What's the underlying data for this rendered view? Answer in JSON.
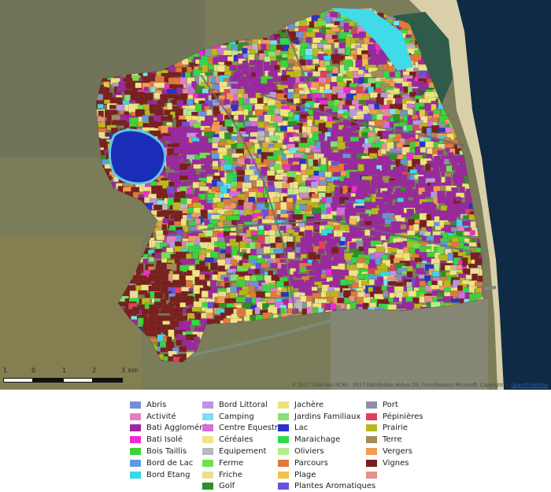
{
  "map": {
    "scale": {
      "labels": [
        "1",
        "0",
        "1",
        "2",
        "3",
        "km"
      ]
    },
    "attribution": {
      "text": "© 2017 CIGA Geo-SCN3 - 2017 Distribution Airbus DS, Contributeurs Microsoft, Copyright ©",
      "link": "OpenStreetMap"
    },
    "lake": {
      "color": "#1a2db8"
    },
    "sea": {
      "color": "#0e2a45"
    }
  },
  "legend": {
    "columns": [
      [
        {
          "label": "Abris",
          "color": "#6f8fdc"
        },
        {
          "label": "Activité",
          "color": "#e27fc6"
        },
        {
          "label": "Bati Aggloméré",
          "color": "#9c27a3"
        },
        {
          "label": "Bati Isolé",
          "color": "#f02bd4"
        },
        {
          "label": "Bois Taillis",
          "color": "#3fd23a"
        },
        {
          "label": "Bord de Lac",
          "color": "#5f9be0"
        },
        {
          "label": "Bord Etang",
          "color": "#38d7ea"
        }
      ],
      [
        {
          "label": "Bord Littoral",
          "color": "#b897e2"
        },
        {
          "label": "Camping",
          "color": "#7fdff0"
        },
        {
          "label": "Centre Equestre",
          "color": "#d36de0"
        },
        {
          "label": "Céréales",
          "color": "#f2e38a"
        },
        {
          "label": "Equipement",
          "color": "#b9b9b9"
        },
        {
          "label": "Ferme",
          "color": "#6fe24a"
        },
        {
          "label": "Friche",
          "color": "#e9dd97"
        },
        {
          "label": "Golf",
          "color": "#2f8f2a"
        }
      ],
      [
        {
          "label": "Jachère",
          "color": "#ece37a"
        },
        {
          "label": "Jardins Familiaux",
          "color": "#86e07a"
        },
        {
          "label": "Lac",
          "color": "#2a33c9"
        },
        {
          "label": "Maraichage",
          "color": "#33d84a"
        },
        {
          "label": "Oliviers",
          "color": "#b6ec8f"
        },
        {
          "label": "Parcours",
          "color": "#e0793a"
        },
        {
          "label": "Plage",
          "color": "#f0c24a"
        },
        {
          "label": "Plantes Aromatiques",
          "color": "#6a52d8"
        }
      ],
      [
        {
          "label": "Port",
          "color": "#8f8fa9"
        },
        {
          "label": "Pépinières",
          "color": "#e0415a"
        },
        {
          "label": "Prairie",
          "color": "#b9b81c"
        },
        {
          "label": "Terre",
          "color": "#a58a5c"
        },
        {
          "label": "Vergers",
          "color": "#f39a55"
        },
        {
          "label": "Vignes",
          "color": "#7a1f1f"
        },
        {
          "label": "",
          "color": "#e2918f"
        }
      ]
    ]
  }
}
